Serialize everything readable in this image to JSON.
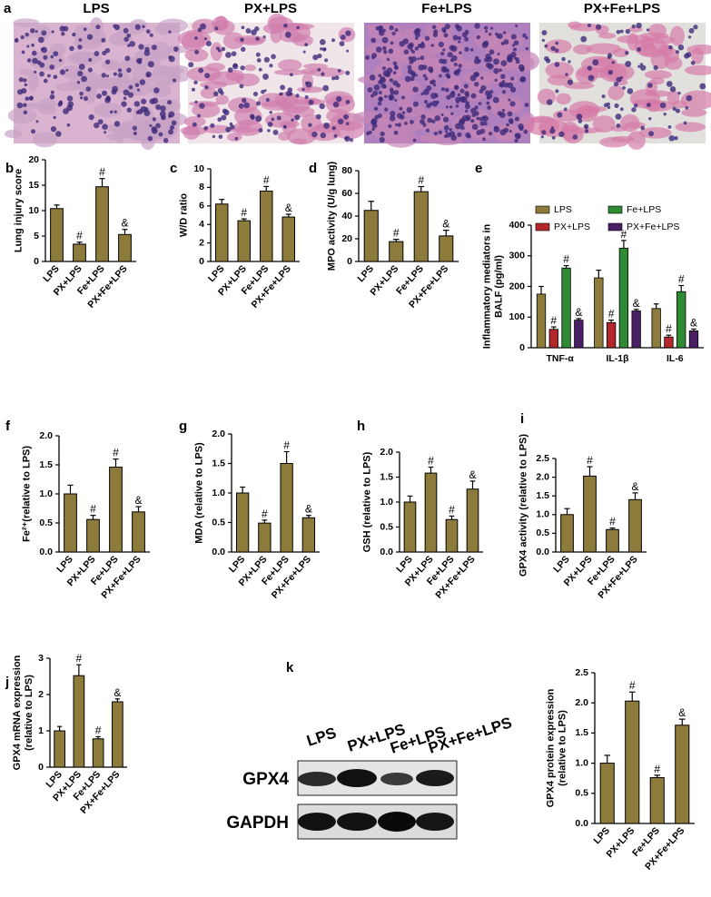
{
  "histology": {
    "panel": "a",
    "labels": [
      "LPS",
      "PX+LPS",
      "Fe+LPS",
      "PX+Fe+LPS"
    ]
  },
  "blot": {
    "panel": "k",
    "lanes": [
      "LPS",
      "PX+LPS",
      "Fe+LPS",
      "PX+Fe+LPS"
    ],
    "rows": [
      "GPX4",
      "GAPDH"
    ]
  },
  "chart_data": [
    {
      "type": "bar",
      "panel": "b",
      "ylabel": [
        "Lung injury score"
      ],
      "color": "#8c7b3b",
      "categories": [
        "LPS",
        "PX+LPS",
        "Fe+LPS",
        "PX+Fe+LPS"
      ],
      "values": [
        10.4,
        3.4,
        14.7,
        5.3
      ],
      "errors": [
        0.7,
        0.4,
        1.6,
        1.0
      ],
      "annotations": [
        null,
        "#",
        "#",
        "&"
      ],
      "ylim": [
        0,
        20
      ],
      "yticks": [
        0,
        5,
        10,
        15,
        20
      ]
    },
    {
      "type": "bar",
      "panel": "c",
      "ylabel": [
        "W/D ratio"
      ],
      "color": "#8c7b3b",
      "categories": [
        "LPS",
        "PX+LPS",
        "Fe+LPS",
        "PX+Fe+LPS"
      ],
      "values": [
        6.2,
        4.4,
        7.6,
        4.8
      ],
      "errors": [
        0.5,
        0.2,
        0.5,
        0.3
      ],
      "annotations": [
        null,
        "#",
        "#",
        "&"
      ],
      "ylim": [
        0,
        10
      ],
      "yticks": [
        0,
        2,
        4,
        6,
        8,
        10
      ]
    },
    {
      "type": "bar",
      "panel": "d",
      "ylabel": [
        "MPO activity (U/g lung)"
      ],
      "color": "#8c7b3b",
      "categories": [
        "LPS",
        "PX+LPS",
        "Fe+LPS",
        "PX+Fe+LPS"
      ],
      "values": [
        45,
        17.5,
        61.5,
        22.5
      ],
      "errors": [
        8,
        2,
        4.5,
        5
      ],
      "annotations": [
        null,
        "#",
        "#",
        "&"
      ],
      "ylim": [
        0,
        80
      ],
      "yticks": [
        0,
        20,
        40,
        60,
        80
      ]
    },
    {
      "type": "grouped-bar",
      "panel": "e",
      "ylabel": [
        "Inflammatory mediators in",
        "BALF (pg/ml)"
      ],
      "categories": [
        "TNF-α",
        "IL-1β",
        "IL-6"
      ],
      "series": [
        {
          "name": "LPS",
          "color": "#8c7b3b",
          "values": [
            175,
            228,
            128
          ],
          "errors": [
            25,
            25,
            15
          ],
          "annotations": [
            null,
            null,
            null
          ]
        },
        {
          "name": "PX+LPS",
          "color": "#b3262b",
          "values": [
            60,
            82,
            35
          ],
          "errors": [
            8,
            8,
            6
          ],
          "annotations": [
            "#",
            "#",
            "#"
          ]
        },
        {
          "name": "Fe+LPS",
          "color": "#2f8a34",
          "values": [
            260,
            325,
            183
          ],
          "errors": [
            8,
            25,
            20
          ],
          "annotations": [
            "#",
            "#",
            "#"
          ]
        },
        {
          "name": "PX+Fe+LPS",
          "color": "#4a1f66",
          "values": [
            90,
            120,
            55
          ],
          "errors": [
            5,
            5,
            6
          ],
          "annotations": [
            "&",
            "&",
            "&"
          ]
        }
      ],
      "ylim": [
        0,
        400
      ],
      "yticks": [
        0,
        100,
        200,
        300,
        400
      ]
    },
    {
      "type": "bar",
      "panel": "f",
      "ylabel": [
        "Fe²⁺(relative to LPS)"
      ],
      "color": "#8c7b3b",
      "categories": [
        "LPS",
        "PX+LPS",
        "Fe+LPS",
        "PX+Fe+LPS"
      ],
      "values": [
        1.0,
        0.56,
        1.46,
        0.69
      ],
      "errors": [
        0.15,
        0.07,
        0.14,
        0.09
      ],
      "annotations": [
        null,
        "#",
        "#",
        "&"
      ],
      "ylim": [
        0,
        2
      ],
      "yticks": [
        {
          "value": 0,
          "label": "0.0"
        },
        0.5,
        {
          "value": 1,
          "label": "1.0"
        },
        1.5,
        {
          "value": 2,
          "label": "2.0"
        }
      ]
    },
    {
      "type": "bar",
      "panel": "g",
      "ylabel": [
        "MDA (relative to LPS)"
      ],
      "color": "#8c7b3b",
      "categories": [
        "LPS",
        "PX+LPS",
        "Fe+LPS",
        "PX+Fe+LPS"
      ],
      "values": [
        1.0,
        0.49,
        1.5,
        0.58
      ],
      "errors": [
        0.1,
        0.05,
        0.2,
        0.04
      ],
      "annotations": [
        null,
        "#",
        "#",
        "&"
      ],
      "ylim": [
        0,
        2
      ],
      "yticks": [
        {
          "value": 0,
          "label": "0.0"
        },
        0.5,
        {
          "value": 1,
          "label": "1.0"
        },
        1.5,
        {
          "value": 2,
          "label": "2.0"
        }
      ]
    },
    {
      "type": "bar",
      "panel": "h",
      "ylabel": [
        "GSH (relative to LPS)"
      ],
      "color": "#8c7b3b",
      "categories": [
        "LPS",
        "PX+LPS",
        "Fe+LPS",
        "PX+Fe+LPS"
      ],
      "values": [
        1.0,
        1.58,
        0.65,
        1.26
      ],
      "errors": [
        0.12,
        0.12,
        0.07,
        0.16
      ],
      "annotations": [
        null,
        "#",
        "#",
        "&"
      ],
      "ylim": [
        0,
        2
      ],
      "yticks": [
        {
          "value": 0,
          "label": "0.0"
        },
        0.5,
        {
          "value": 1,
          "label": "1.0"
        },
        1.5,
        {
          "value": 2,
          "label": "2.0"
        }
      ]
    },
    {
      "type": "bar",
      "panel": "i",
      "ylabel": [
        "GPX4 activity (relative to LPS)"
      ],
      "color": "#8c7b3b",
      "categories": [
        "LPS",
        "PX+LPS",
        "Fe+LPS",
        "PX+Fe+LPS"
      ],
      "values": [
        1.0,
        2.03,
        0.6,
        1.4
      ],
      "errors": [
        0.16,
        0.25,
        0.04,
        0.18
      ],
      "annotations": [
        null,
        "#",
        "#",
        "&"
      ],
      "ylim": [
        0,
        2.5
      ],
      "yticks": [
        {
          "value": 0,
          "label": "0.0"
        },
        0.5,
        {
          "value": 1,
          "label": "1.0"
        },
        1.5,
        {
          "value": 2,
          "label": "2.0"
        },
        2.5
      ]
    },
    {
      "type": "bar",
      "panel": "j",
      "ylabel": [
        "GPX4 mRNA expression",
        "(relative to LPS)"
      ],
      "color": "#8c7b3b",
      "categories": [
        "LPS",
        "PX+LPS",
        "Fe+LPS",
        "PX+Fe+LPS"
      ],
      "values": [
        1.0,
        2.52,
        0.78,
        1.8
      ],
      "errors": [
        0.12,
        0.3,
        0.06,
        0.08
      ],
      "annotations": [
        null,
        "#",
        "#",
        "&"
      ],
      "ylim": [
        0,
        3
      ],
      "yticks": [
        0,
        1,
        2,
        3
      ]
    },
    {
      "type": "bar",
      "ylabel": [
        "GPX4 protein expression",
        "(relative to LPS)"
      ],
      "color": "#8c7b3b",
      "categories": [
        "LPS",
        "PX+LPS",
        "Fe+LPS",
        "PX+Fe+LPS"
      ],
      "values": [
        1.0,
        2.03,
        0.76,
        1.63
      ],
      "errors": [
        0.13,
        0.15,
        0.04,
        0.1
      ],
      "annotations": [
        null,
        "#",
        "#",
        "&"
      ],
      "ylim": [
        0,
        2.5
      ],
      "yticks": [
        {
          "value": 0,
          "label": "0.0"
        },
        0.5,
        {
          "value": 1,
          "label": "1.0"
        },
        1.5,
        {
          "value": 2,
          "label": "2.0"
        },
        2.5
      ]
    }
  ]
}
